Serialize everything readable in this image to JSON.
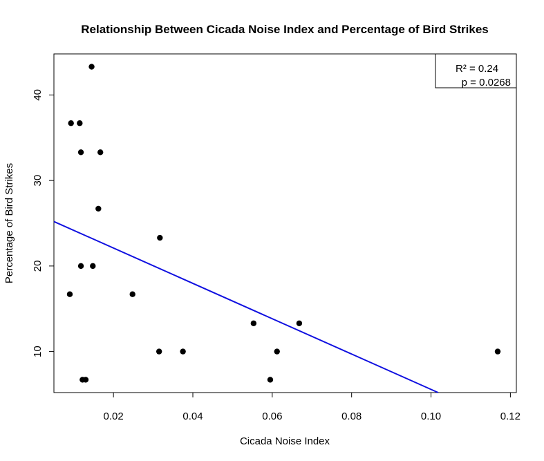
{
  "chart_data": {
    "type": "scatter",
    "title": "Relationship Between Cicada Noise Index and Percentage of Bird Strikes",
    "xlabel": "Cicada Noise Index",
    "ylabel": "Percentage of Bird Strikes",
    "xlim": [
      0.005,
      0.1215
    ],
    "ylim": [
      5.2,
      44.8
    ],
    "xticks": [
      0.02,
      0.04,
      0.06,
      0.08,
      0.1,
      0.12
    ],
    "xtick_labels": [
      "0.02",
      "0.04",
      "0.06",
      "0.08",
      "0.10",
      "0.12"
    ],
    "yticks": [
      10,
      20,
      30,
      40
    ],
    "ytick_labels": [
      "10",
      "20",
      "30",
      "40"
    ],
    "grid": false,
    "points": [
      {
        "x": 0.0145,
        "y": 43.3
      },
      {
        "x": 0.0093,
        "y": 36.7
      },
      {
        "x": 0.0115,
        "y": 36.7
      },
      {
        "x": 0.0118,
        "y": 33.3
      },
      {
        "x": 0.0167,
        "y": 33.3
      },
      {
        "x": 0.0162,
        "y": 26.7
      },
      {
        "x": 0.0317,
        "y": 23.3
      },
      {
        "x": 0.0118,
        "y": 20.0
      },
      {
        "x": 0.0148,
        "y": 20.0
      },
      {
        "x": 0.009,
        "y": 16.7
      },
      {
        "x": 0.0248,
        "y": 16.7
      },
      {
        "x": 0.0553,
        "y": 13.3
      },
      {
        "x": 0.0668,
        "y": 13.3
      },
      {
        "x": 0.0315,
        "y": 10.0
      },
      {
        "x": 0.0375,
        "y": 10.0
      },
      {
        "x": 0.0612,
        "y": 10.0
      },
      {
        "x": 0.1168,
        "y": 10.0
      },
      {
        "x": 0.0122,
        "y": 6.7
      },
      {
        "x": 0.013,
        "y": 6.7
      },
      {
        "x": 0.0595,
        "y": 6.7
      }
    ],
    "regression_line": {
      "color": "#1010e0",
      "start": {
        "x": 0.005,
        "y": 25.2
      },
      "end": {
        "x": 0.1018,
        "y": 5.2
      }
    },
    "legend": {
      "position": "top-right",
      "lines": [
        "R² = 0.24",
        "p = 0.0268"
      ]
    },
    "point_color": "#000000"
  }
}
